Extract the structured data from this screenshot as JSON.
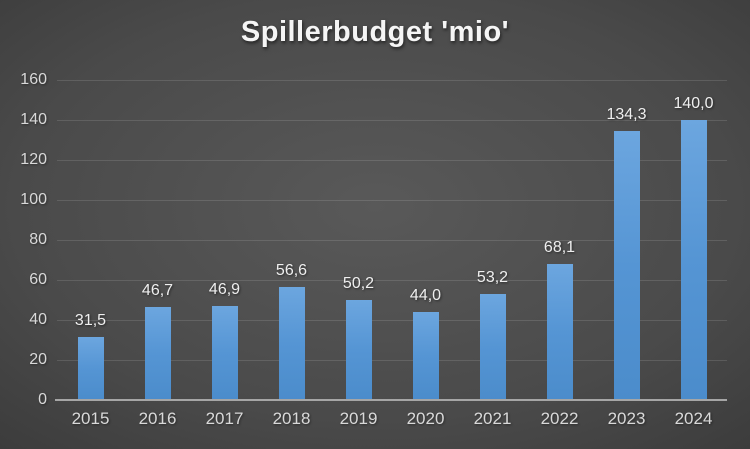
{
  "chart_data": {
    "type": "bar",
    "title": "Spillerbudget 'mio'",
    "categories": [
      "2015",
      "2016",
      "2017",
      "2018",
      "2019",
      "2020",
      "2021",
      "2022",
      "2023",
      "2024"
    ],
    "values": [
      31.5,
      46.7,
      46.9,
      56.6,
      50.2,
      44.0,
      53.2,
      68.1,
      134.3,
      140.0
    ],
    "value_labels": [
      "31,5",
      "46,7",
      "46,9",
      "56,6",
      "50,2",
      "44,0",
      "53,2",
      "68,1",
      "134,3",
      "140,0"
    ],
    "xlabel": "",
    "ylabel": "",
    "ylim": [
      0,
      160
    ],
    "yticks": [
      0,
      20,
      40,
      60,
      80,
      100,
      120,
      140,
      160
    ],
    "grid": true,
    "legend": false
  },
  "colors": {
    "background_center": "#595959",
    "background_edge": "#272727",
    "bar_top": "#6CA6DF",
    "bar_mid": "#5595D4",
    "bar_bottom": "#4B8CCB",
    "axis_line": "#a6a6a6",
    "gridline": "rgba(255,255,255,0.12)",
    "tick_label": "#d9d9d9",
    "data_label": "#efefef",
    "title_text": "#f5f5f5"
  }
}
